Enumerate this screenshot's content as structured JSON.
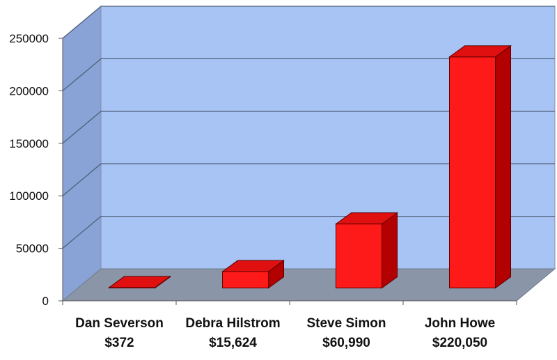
{
  "chart_data": {
    "type": "bar",
    "title": "",
    "xlabel": "",
    "ylabel": "",
    "ylim": [
      0,
      250000
    ],
    "yticks": [
      0,
      50000,
      100000,
      150000,
      200000,
      250000
    ],
    "yticks_labels": [
      "0",
      "50000",
      "100000",
      "150000",
      "200000",
      "250000"
    ],
    "grid": true,
    "three_d": true,
    "categories": [
      "Dan Severson",
      "Debra Hilstrom",
      "Steve Simon",
      "John Howe"
    ],
    "value_labels": [
      "$372",
      "$15,624",
      "$60,990",
      "$220,050"
    ],
    "values": [
      372,
      15624,
      60990,
      220050
    ],
    "colors": {
      "bar_front": "#ff1a1a",
      "bar_top": "#e01010",
      "bar_side": "#b30000",
      "bar_stroke": "#5a0000",
      "wall": "#a8c4f5",
      "wall_side": "#8aa3d6",
      "floor": "#8a95a8",
      "grid": "#4f5f7a"
    }
  }
}
